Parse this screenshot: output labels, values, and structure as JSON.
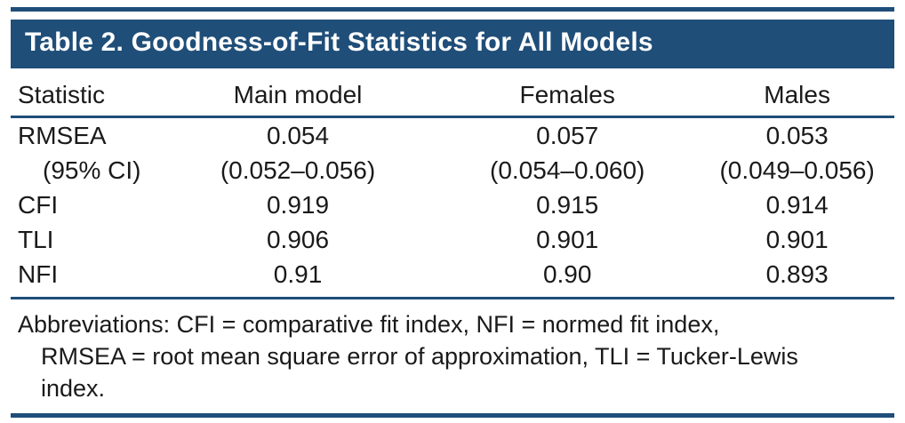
{
  "title": "Table 2. Goodness-of-Fit Statistics for All Models",
  "colors": {
    "accent": "#1f4e79",
    "text": "#1a1a1a",
    "title_text": "#ffffff"
  },
  "table": {
    "columns": [
      "Statistic",
      "Main model",
      "Females",
      "Males"
    ],
    "rows": [
      {
        "label": "RMSEA",
        "indent": false,
        "values": [
          "0.054",
          "0.057",
          "0.053"
        ]
      },
      {
        "label": "(95% CI)",
        "indent": true,
        "values": [
          "(0.052–0.056)",
          "(0.054–0.060)",
          "(0.049–0.056)"
        ]
      },
      {
        "label": "CFI",
        "indent": false,
        "values": [
          "0.919",
          "0.915",
          "0.914"
        ]
      },
      {
        "label": "TLI",
        "indent": false,
        "values": [
          "0.906",
          "0.901",
          "0.901"
        ]
      },
      {
        "label": "NFI",
        "indent": false,
        "values": [
          "0.91",
          "0.90",
          "0.893"
        ]
      }
    ]
  },
  "footnote": {
    "lines": [
      "Abbreviations: CFI = comparative fit index, NFI = normed fit index,",
      "RMSEA = root mean square error of approximation, TLI = Tucker-Lewis",
      "index."
    ]
  }
}
